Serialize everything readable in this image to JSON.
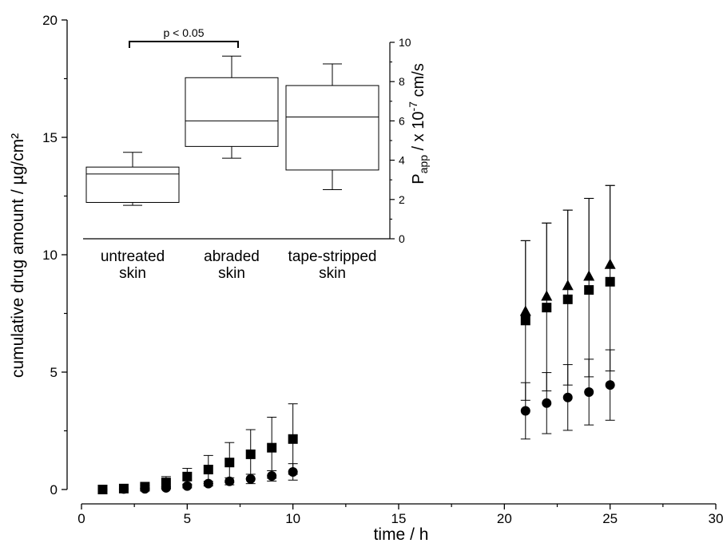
{
  "chart_data": [
    {
      "type": "scatter",
      "xlabel": "time / h",
      "ylabel": "cumulative drug amount / µg/cm²",
      "xlim": [
        0,
        30
      ],
      "ylim": [
        0,
        20
      ],
      "xticks": [
        "0",
        "5",
        "10",
        "15",
        "20",
        "25",
        "30"
      ],
      "yticks": [
        "0",
        "5",
        "10",
        "15",
        "20"
      ],
      "grid": false,
      "series": [
        {
          "marker": "circle",
          "x": [
            1,
            2,
            3,
            4,
            5,
            6,
            7,
            8,
            9,
            10,
            21,
            22,
            23,
            24,
            25
          ],
          "y": [
            0.0,
            0.02,
            0.03,
            0.07,
            0.15,
            0.25,
            0.35,
            0.45,
            0.58,
            0.75,
            3.35,
            3.68,
            3.92,
            4.15,
            4.45
          ],
          "err_lo": [
            0,
            0,
            0.02,
            0.04,
            0.08,
            0.1,
            0.15,
            0.2,
            0.22,
            0.35,
            1.2,
            1.3,
            1.4,
            1.4,
            1.5
          ],
          "err_hi": [
            0,
            0,
            0.02,
            0.04,
            0.08,
            0.1,
            0.15,
            0.2,
            0.22,
            0.35,
            1.2,
            1.3,
            1.4,
            1.4,
            1.5
          ]
        },
        {
          "marker": "square",
          "x": [
            1,
            2,
            3,
            4,
            5,
            6,
            7,
            8,
            9,
            10,
            21,
            22,
            23,
            24,
            25
          ],
          "y": [
            0.0,
            0.04,
            0.12,
            0.3,
            0.55,
            0.85,
            1.15,
            1.5,
            1.78,
            2.15,
            7.2,
            7.75,
            8.1,
            8.5,
            8.85
          ],
          "err_lo": [
            0,
            0,
            0.05,
            0.25,
            0.35,
            0.6,
            0.85,
            1.05,
            1.3,
            1.5,
            3.4,
            3.55,
            3.65,
            3.7,
            3.8
          ],
          "err_hi": [
            0,
            0,
            0.05,
            0.25,
            0.35,
            0.6,
            0.85,
            1.05,
            1.3,
            1.5,
            3.4,
            3.6,
            3.8,
            3.9,
            4.1
          ]
        },
        {
          "marker": "triangle",
          "x": [
            21,
            22,
            23,
            24,
            25
          ],
          "y": [
            7.6,
            8.25,
            8.7,
            9.1,
            9.6
          ],
          "err_lo": [
            0,
            0,
            0,
            0,
            0
          ],
          "err_hi": [
            3.0,
            3.1,
            3.2,
            3.3,
            3.35
          ]
        }
      ]
    },
    {
      "type": "box",
      "ylabel_main": "P",
      "ylabel_sub": "app",
      "ylabel_mid": " / x 10",
      "ylabel_sup": "-7",
      "ylabel_end": " cm/s",
      "ylim": [
        0,
        10
      ],
      "yticks": [
        "0",
        "2",
        "4",
        "6",
        "8",
        "10"
      ],
      "categories": [
        [
          "untreated",
          "skin"
        ],
        [
          "abraded",
          "skin"
        ],
        [
          "tape-stripped",
          "skin"
        ]
      ],
      "boxes": [
        {
          "min": 1.7,
          "q1": 1.85,
          "median": 3.3,
          "q3": 3.65,
          "max": 4.4
        },
        {
          "min": 4.1,
          "q1": 4.7,
          "median": 6.0,
          "q3": 8.2,
          "max": 9.3
        },
        {
          "min": 2.5,
          "q1": 3.5,
          "median": 6.2,
          "q3": 7.8,
          "max": 8.9
        }
      ],
      "significance": {
        "label": "p < 0.05",
        "from": 0,
        "to": 1
      }
    }
  ]
}
